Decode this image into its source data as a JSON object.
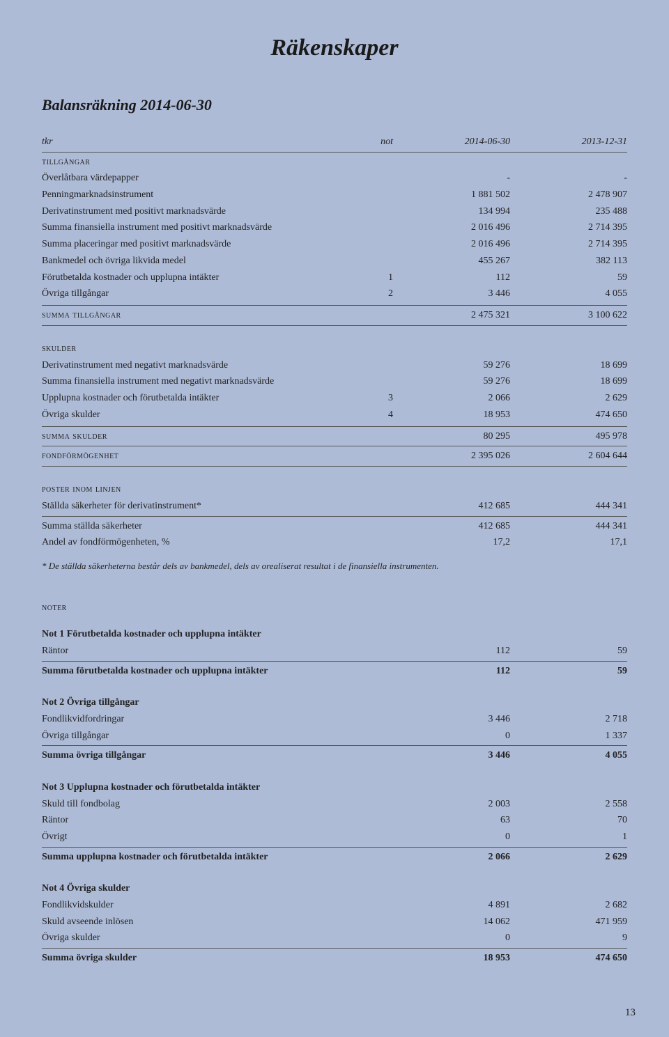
{
  "page": {
    "title": "Räkenskaper",
    "section_title": "Balansräkning 2014-06-30",
    "page_number": "13"
  },
  "headers": {
    "tkr": "tkr",
    "not": "not",
    "colA": "2014-06-30",
    "colB": "2013-12-31"
  },
  "section_labels": {
    "tillgangar": "tillgångar",
    "summa_tillgangar": "summa tillgångar",
    "skulder": "skulder",
    "summa_skulder": "summa skulder",
    "fondformogenhet": "fondförmögenhet",
    "poster_inom_linjen": "poster inom linjen",
    "noter": "noter"
  },
  "tillgangar": [
    {
      "label": "Överlåtbara värdepapper",
      "not": "",
      "a": "-",
      "b": "-"
    },
    {
      "label": "Penningmarknadsinstrument",
      "not": "",
      "a": "1 881 502",
      "b": "2 478 907"
    },
    {
      "label": "Derivatinstrument med positivt marknadsvärde",
      "not": "",
      "a": "134 994",
      "b": "235 488"
    },
    {
      "label": "Summa finansiella instrument med positivt marknadsvärde",
      "not": "",
      "a": "2 016 496",
      "b": "2 714 395"
    },
    {
      "label": "Summa placeringar med positivt marknadsvärde",
      "not": "",
      "a": "2 016 496",
      "b": "2 714 395"
    },
    {
      "label": "Bankmedel och övriga likvida medel",
      "not": "",
      "a": "455 267",
      "b": "382 113"
    },
    {
      "label": "Förutbetalda kostnader och upplupna intäkter",
      "not": "1",
      "a": "112",
      "b": "59"
    },
    {
      "label": "Övriga tillgångar",
      "not": "2",
      "a": "3 446",
      "b": "4 055"
    }
  ],
  "summa_tillgangar": {
    "a": "2 475 321",
    "b": "3 100 622"
  },
  "skulder": [
    {
      "label": "Derivatinstrument med negativt marknadsvärde",
      "not": "",
      "a": "59 276",
      "b": "18 699"
    },
    {
      "label": "Summa finansiella instrument med negativt marknadsvärde",
      "not": "",
      "a": "59 276",
      "b": "18 699"
    },
    {
      "label": "Upplupna kostnader och förutbetalda intäkter",
      "not": "3",
      "a": "2 066",
      "b": "2 629"
    },
    {
      "label": "Övriga skulder",
      "not": "4",
      "a": "18 953",
      "b": "474 650"
    }
  ],
  "summa_skulder": {
    "a": "80 295",
    "b": "495 978"
  },
  "fondformogenhet": {
    "a": "2 395 026",
    "b": "2 604 644"
  },
  "poster": [
    {
      "label": "Ställda säkerheter för derivatinstrument*",
      "a": "412 685",
      "b": "444 341"
    },
    {
      "label": "Summa ställda säkerheter",
      "a": "412 685",
      "b": "444 341"
    },
    {
      "label": "Andel av fondförmögenheten, %",
      "a": "17,2",
      "b": "17,1"
    }
  ],
  "footnote": "* De ställda säkerheterna består dels av bankmedel, dels av orealiserat resultat i de finansiella instrumenten.",
  "notes": [
    {
      "title": "Not 1 Förutbetalda kostnader och upplupna intäkter",
      "rows": [
        {
          "label": "Räntor",
          "a": "112",
          "b": "59"
        }
      ],
      "sum": {
        "label": "Summa förutbetalda kostnader och upplupna intäkter",
        "a": "112",
        "b": "59"
      }
    },
    {
      "title": "Not 2 Övriga tillgångar",
      "rows": [
        {
          "label": "Fondlikvidfordringar",
          "a": "3 446",
          "b": "2 718"
        },
        {
          "label": "Övriga tillgångar",
          "a": "0",
          "b": "1 337"
        }
      ],
      "sum": {
        "label": "Summa övriga tillgångar",
        "a": "3 446",
        "b": "4 055"
      }
    },
    {
      "title": "Not 3 Upplupna kostnader och förutbetalda intäkter",
      "rows": [
        {
          "label": "Skuld till fondbolag",
          "a": "2 003",
          "b": "2 558"
        },
        {
          "label": "Räntor",
          "a": "63",
          "b": "70"
        },
        {
          "label": "Övrigt",
          "a": "0",
          "b": "1"
        }
      ],
      "sum": {
        "label": "Summa upplupna kostnader och förutbetalda intäkter",
        "a": "2 066",
        "b": "2 629"
      }
    },
    {
      "title": "Not 4 Övriga skulder",
      "rows": [
        {
          "label": "Fondlikvidskulder",
          "a": "4 891",
          "b": "2 682"
        },
        {
          "label": "Skuld avseende inlösen",
          "a": "14 062",
          "b": "471 959"
        },
        {
          "label": "Övriga skulder",
          "a": "0",
          "b": "9"
        }
      ],
      "sum": {
        "label": "Summa övriga skulder",
        "a": "18 953",
        "b": "474 650"
      }
    }
  ]
}
